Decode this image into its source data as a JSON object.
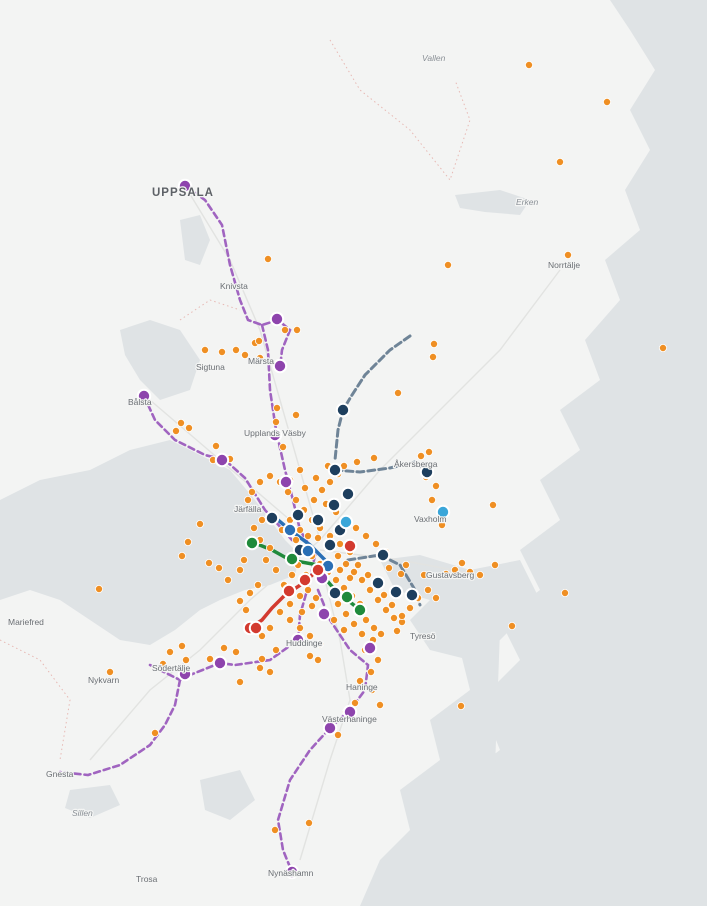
{
  "map": {
    "colors": {
      "land": "#f3f4f3",
      "water": "#dfe3e5",
      "commuter_rail": "#a064c0",
      "commuter_station": "#8e44ad",
      "bus_stop": "#ef8f23",
      "metro_blue": "#2a6fb5",
      "metro_dark": "#1e3f5e",
      "tram_grey": "#6f8497",
      "metro_red": "#d33a2f",
      "metro_green": "#1f8a3b",
      "light_rail_cyan": "#3aa6d9"
    },
    "places": [
      {
        "id": "uppsala",
        "label": "UPPSALA"
      },
      {
        "id": "knivsta",
        "label": "Knivsta"
      },
      {
        "id": "sigtuna",
        "label": "Sigtuna"
      },
      {
        "id": "marsta",
        "label": "Märsta"
      },
      {
        "id": "balsta",
        "label": "Bålsta"
      },
      {
        "id": "upplands-vasby",
        "label": "Upplands Väsby"
      },
      {
        "id": "akersberga",
        "label": "Åkersberga"
      },
      {
        "id": "vaxholm",
        "label": "Vaxholm"
      },
      {
        "id": "norrtalje",
        "label": "Norrtälje"
      },
      {
        "id": "gustavsberg",
        "label": "Gustavsberg"
      },
      {
        "id": "tyreso",
        "label": "Tyresö"
      },
      {
        "id": "mariefred",
        "label": "Mariefred"
      },
      {
        "id": "nykvarn",
        "label": "Nykvarn"
      },
      {
        "id": "sodertalje",
        "label": "Södertälje"
      },
      {
        "id": "huddinge",
        "label": "Huddinge"
      },
      {
        "id": "haninge",
        "label": "Haninge"
      },
      {
        "id": "vasterhaninge",
        "label": "Västerhaninge"
      },
      {
        "id": "gnesta",
        "label": "Gnesta"
      },
      {
        "id": "nynashamn",
        "label": "Nynäshamn"
      },
      {
        "id": "trosa",
        "label": "Trosa"
      },
      {
        "id": "jarfalla",
        "label": "Järfälla"
      }
    ],
    "water_labels": [
      {
        "id": "vallen",
        "label": "Vallen"
      },
      {
        "id": "erken",
        "label": "Erken"
      },
      {
        "id": "sillen",
        "label": "Sillen"
      }
    ]
  }
}
